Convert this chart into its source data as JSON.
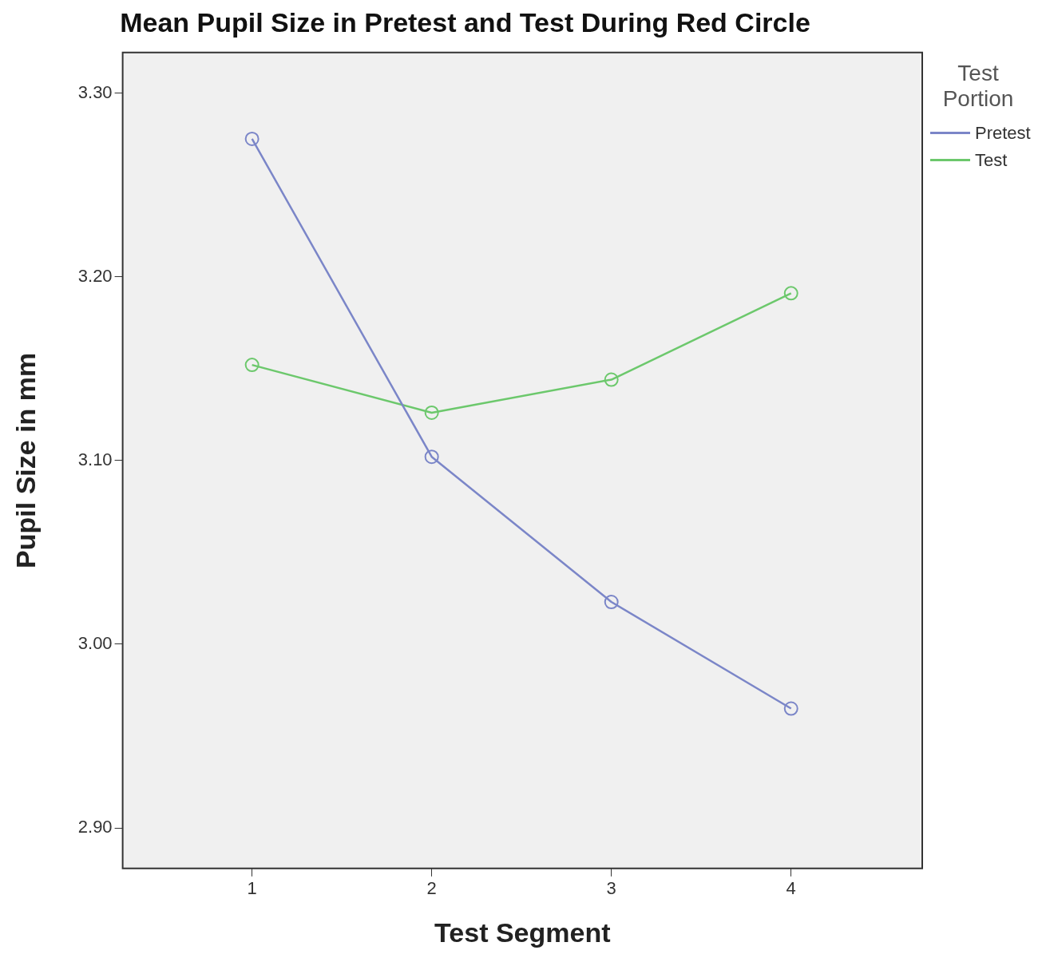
{
  "chart_data": {
    "type": "line",
    "title": "Mean Pupil Size in Pretest and Test During Red Circle",
    "xlabel": "Test Segment",
    "ylabel": "Pupil Size in mm",
    "legend_title": "Test Portion",
    "x": [
      1,
      2,
      3,
      4
    ],
    "series": [
      {
        "name": "Pretest",
        "color": "#7b86c8",
        "values": [
          3.275,
          3.102,
          3.023,
          2.965
        ]
      },
      {
        "name": "Test",
        "color": "#6cc86c",
        "values": [
          3.152,
          3.126,
          3.144,
          3.191
        ]
      }
    ],
    "xlim": [
      0.28,
      4.73
    ],
    "xticks": [
      1,
      2,
      3,
      4
    ],
    "ylim": [
      2.878,
      3.322
    ],
    "yticks": [
      {
        "value": 2.9,
        "label": "2.90"
      },
      {
        "value": 3.0,
        "label": "3.00"
      },
      {
        "value": 3.1,
        "label": "3.10"
      },
      {
        "value": 3.2,
        "label": "3.20"
      },
      {
        "value": 3.3,
        "label": "3.30"
      }
    ],
    "grid": false,
    "legend": "top right",
    "marker": "circle",
    "line_style": "solid"
  }
}
